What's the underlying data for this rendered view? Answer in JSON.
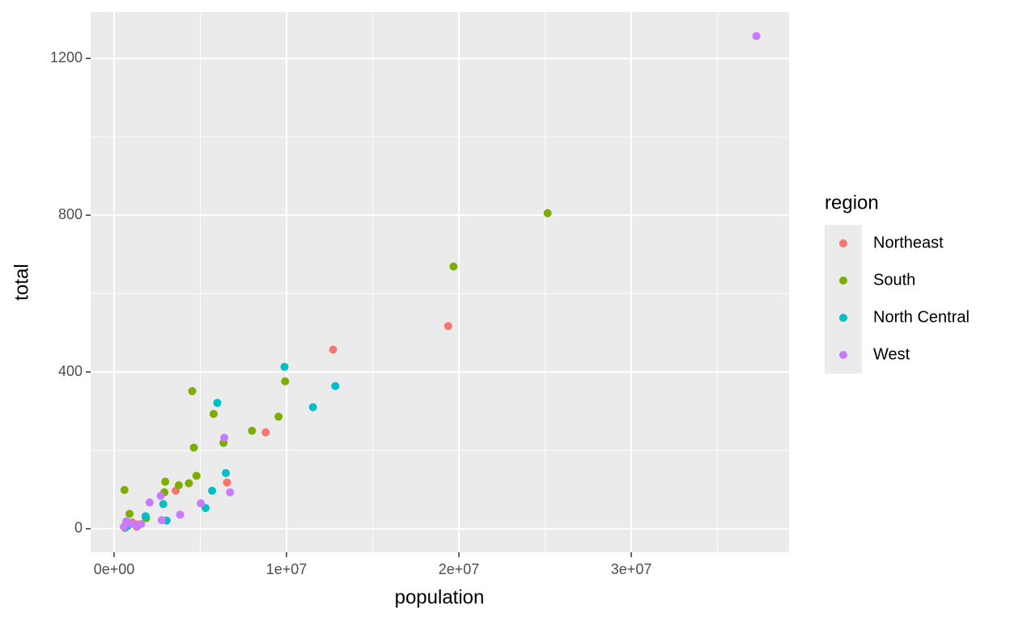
{
  "chart_data": {
    "type": "scatter",
    "x_label": "population",
    "y_label": "total",
    "legend_title": "region",
    "legend_position": "right",
    "grid": true,
    "xlim": [
      -1360000,
      39150000
    ],
    "ylim": [
      -60,
      1318
    ],
    "xticks": [
      {
        "value": 0,
        "label": "0e+00"
      },
      {
        "value": 10000000,
        "label": "1e+07"
      },
      {
        "value": 20000000,
        "label": "2e+07"
      },
      {
        "value": 30000000,
        "label": "3e+07"
      }
    ],
    "yticks": [
      0,
      400,
      800,
      1200
    ],
    "x_minor_ticks": [
      5000000,
      15000000,
      25000000,
      35000000
    ],
    "y_minor_ticks": [
      200,
      600,
      1000
    ],
    "series": [
      {
        "name": "Northeast",
        "color": "#F8766D",
        "x": [
          3574097,
          1328361,
          6547629,
          1316470,
          8791894,
          19378102,
          12702379,
          1052567,
          625741
        ],
        "values": [
          97,
          11,
          118,
          5,
          246,
          517,
          457,
          16,
          2
        ]
      },
      {
        "name": "South",
        "color": "#7CAE00",
        "x": [
          4779736,
          2915918,
          897934,
          601723,
          19687653,
          9920000,
          4339367,
          4533372,
          5773552,
          2967297,
          9535483,
          3751351,
          4625364,
          6346105,
          25145561,
          8001024,
          1852994
        ],
        "values": [
          135,
          93,
          38,
          99,
          669,
          376,
          116,
          351,
          293,
          120,
          286,
          111,
          207,
          219,
          805,
          250,
          27
        ]
      },
      {
        "name": "North Central",
        "color": "#00BFC4",
        "x": [
          12830632,
          6483802,
          3046355,
          2853118,
          9883640,
          5303925,
          5988927,
          1826341,
          672591,
          11536504,
          814180,
          5686986
        ],
        "values": [
          364,
          142,
          21,
          63,
          413,
          53,
          321,
          32,
          4,
          310,
          8,
          97
        ]
      },
      {
        "name": "West",
        "color": "#C77CFF",
        "x": [
          710231,
          6392017,
          37253956,
          5029196,
          1360301,
          1567582,
          989415,
          2700551,
          2059179,
          3831074,
          2763885,
          6724540,
          563626
        ],
        "values": [
          19,
          232,
          1257,
          65,
          7,
          12,
          12,
          84,
          67,
          36,
          22,
          93,
          5
        ]
      }
    ]
  }
}
